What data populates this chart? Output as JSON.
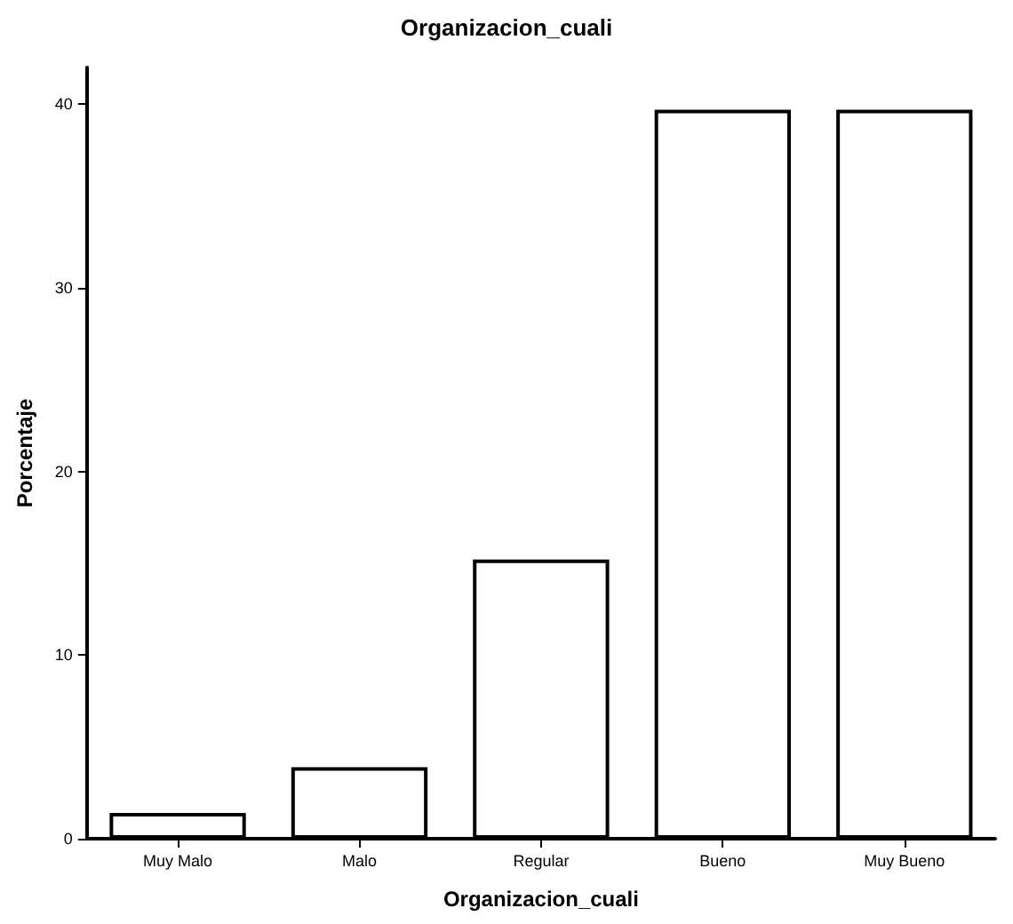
{
  "chart_data": {
    "type": "bar",
    "title": "Organizacion_cuali",
    "xlabel": "Organizacion_cuali",
    "ylabel": "Porcentaje",
    "categories": [
      "Muy Malo",
      "Malo",
      "Regular",
      "Bueno",
      "Muy Bueno"
    ],
    "values": [
      1.4,
      3.9,
      15.2,
      39.7,
      39.7
    ],
    "color": "#ffffff",
    "ylim": [
      0,
      42
    ],
    "yticks": [
      0,
      10,
      20,
      30,
      40
    ],
    "grid": false
  }
}
